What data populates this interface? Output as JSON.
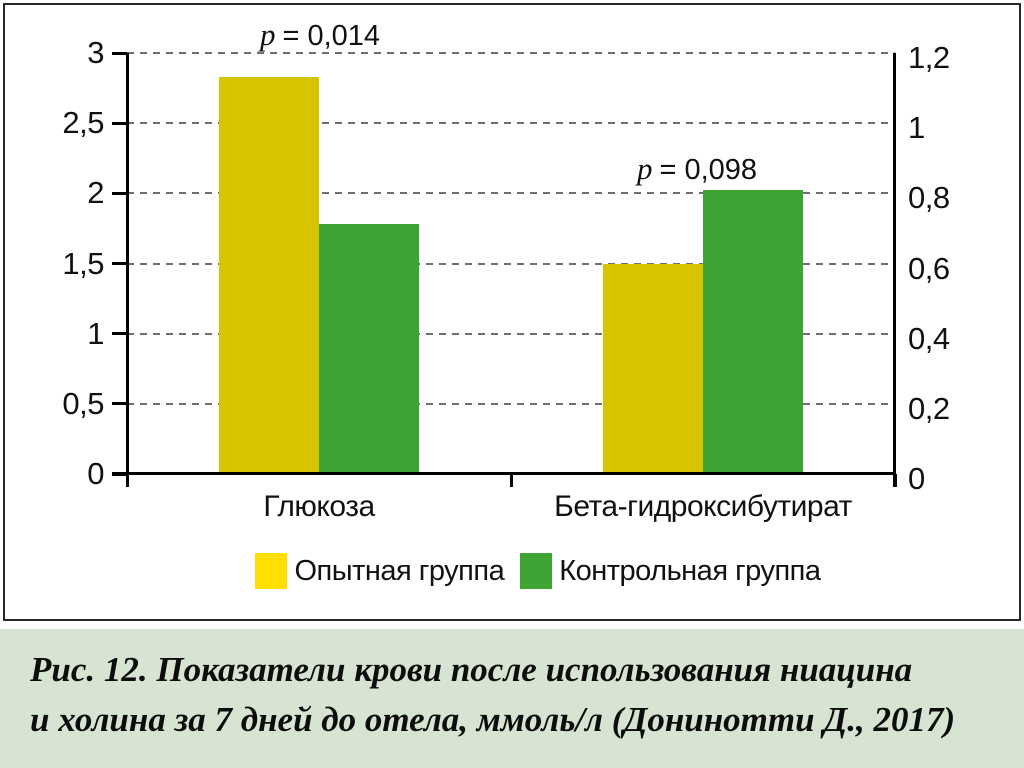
{
  "chart_data": {
    "type": "bar",
    "title": "",
    "categories": [
      "Глюкоза",
      "Бета-гидроксибутират"
    ],
    "category_axis": [
      "left",
      "right"
    ],
    "series": [
      {
        "name": "Опытная группа",
        "color": "#d6c400",
        "legend_color": "#ffde00",
        "values": [
          2.83,
          0.6
        ]
      },
      {
        "name": "Контрольная группа",
        "color": "#3ea434",
        "legend_color": "#3ea434",
        "values": [
          1.78,
          0.81
        ]
      }
    ],
    "annotations": [
      {
        "prefix_italic": "p",
        "text": "= 0,014",
        "category": "Глюкоза"
      },
      {
        "prefix_italic": "p",
        "text": "= 0,098",
        "category": "Бета-гидроксибутират"
      }
    ],
    "left_axis": {
      "min": 0,
      "max": 3,
      "ticks": [
        "3",
        "2,5",
        "2",
        "1,5",
        "1",
        "0,5",
        "0"
      ]
    },
    "right_axis": {
      "min": 0,
      "max": 1.2,
      "ticks": [
        "1,2",
        "1",
        "0,8",
        "0,6",
        "0,4",
        "0,2",
        "0"
      ]
    },
    "unit": "ммоль/л",
    "grid": "horizontal-dashed",
    "legend_position": "bottom"
  },
  "caption": {
    "line1": "Рис. 12. Показатели крови после использования ниацина",
    "line2": "и холина за 7 дней до отела, ммоль/л (Донинотти Д., 2017)",
    "background": "#d6e4d1"
  }
}
